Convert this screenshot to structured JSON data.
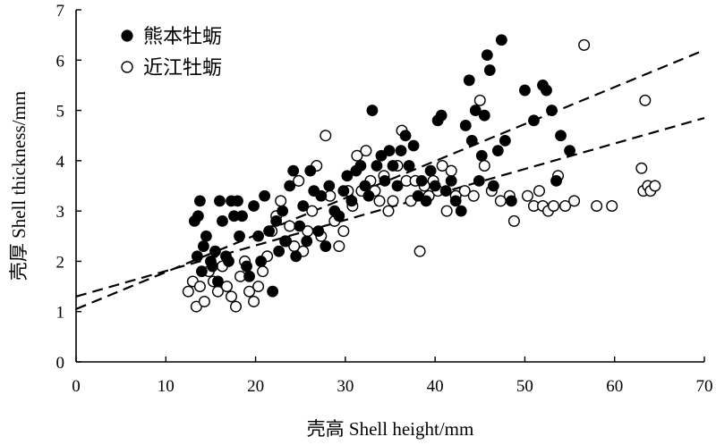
{
  "chart_data": {
    "type": "scatter",
    "xlabel": "壳高 Shell height/mm",
    "ylabel": "壳厚 Shell thickness/mm",
    "xlim": [
      0,
      70
    ],
    "ylim": [
      0,
      7
    ],
    "xticks": [
      0,
      10,
      20,
      30,
      40,
      50,
      60,
      70
    ],
    "yticks": [
      0,
      1,
      2,
      3,
      4,
      5,
      6,
      7
    ],
    "grid": false,
    "legend_position": "top-left",
    "series": [
      {
        "name": "熊本牡蛎",
        "marker": "filled-circle",
        "color": "#000000",
        "trend_line": [
          [
            0,
            1.05
          ],
          [
            70,
            6.2
          ]
        ],
        "points": [
          [
            13.2,
            2.8
          ],
          [
            13.6,
            2.9
          ],
          [
            13.8,
            3.2
          ],
          [
            13.5,
            2.1
          ],
          [
            14.0,
            1.8
          ],
          [
            14.2,
            2.3
          ],
          [
            14.5,
            2.5
          ],
          [
            15.0,
            2.0
          ],
          [
            15.2,
            1.9
          ],
          [
            15.5,
            2.2
          ],
          [
            15.8,
            1.6
          ],
          [
            16.0,
            3.2
          ],
          [
            16.3,
            2.8
          ],
          [
            16.7,
            2.1
          ],
          [
            17.0,
            2.0
          ],
          [
            17.3,
            3.2
          ],
          [
            17.6,
            2.9
          ],
          [
            18.0,
            3.2
          ],
          [
            18.2,
            2.5
          ],
          [
            18.5,
            2.9
          ],
          [
            19.0,
            1.9
          ],
          [
            19.3,
            1.7
          ],
          [
            19.8,
            3.1
          ],
          [
            20.3,
            2.5
          ],
          [
            20.6,
            2.0
          ],
          [
            21.0,
            3.3
          ],
          [
            21.5,
            2.6
          ],
          [
            21.9,
            1.4
          ],
          [
            22.3,
            2.8
          ],
          [
            22.6,
            2.2
          ],
          [
            23.0,
            3.0
          ],
          [
            23.4,
            2.4
          ],
          [
            23.8,
            3.5
          ],
          [
            24.2,
            3.8
          ],
          [
            24.5,
            2.1
          ],
          [
            24.9,
            2.7
          ],
          [
            25.3,
            3.1
          ],
          [
            25.7,
            2.4
          ],
          [
            26.1,
            3.8
          ],
          [
            26.5,
            3.4
          ],
          [
            27.0,
            2.6
          ],
          [
            27.3,
            3.3
          ],
          [
            27.8,
            2.3
          ],
          [
            28.2,
            3.5
          ],
          [
            28.8,
            3.0
          ],
          [
            29.3,
            2.9
          ],
          [
            29.8,
            3.4
          ],
          [
            30.2,
            3.7
          ],
          [
            30.7,
            3.2
          ],
          [
            31.2,
            3.8
          ],
          [
            31.7,
            3.9
          ],
          [
            32.2,
            3.5
          ],
          [
            32.6,
            3.3
          ],
          [
            33.0,
            5.0
          ],
          [
            33.5,
            3.9
          ],
          [
            34.0,
            4.1
          ],
          [
            34.4,
            3.6
          ],
          [
            34.9,
            4.2
          ],
          [
            35.3,
            3.9
          ],
          [
            35.8,
            3.5
          ],
          [
            36.2,
            4.2
          ],
          [
            36.7,
            4.5
          ],
          [
            37.1,
            3.9
          ],
          [
            37.6,
            4.3
          ],
          [
            38.1,
            3.3
          ],
          [
            38.5,
            3.6
          ],
          [
            39.0,
            3.2
          ],
          [
            39.5,
            3.8
          ],
          [
            40.0,
            3.5
          ],
          [
            40.3,
            4.8
          ],
          [
            40.7,
            4.9
          ],
          [
            41.2,
            3.4
          ],
          [
            41.8,
            3.6
          ],
          [
            42.3,
            3.2
          ],
          [
            42.9,
            3.0
          ],
          [
            43.4,
            4.7
          ],
          [
            43.8,
            5.6
          ],
          [
            44.1,
            4.4
          ],
          [
            44.5,
            5.0
          ],
          [
            44.9,
            3.6
          ],
          [
            45.2,
            4.1
          ],
          [
            45.5,
            4.9
          ],
          [
            45.8,
            6.1
          ],
          [
            46.1,
            5.8
          ],
          [
            46.5,
            3.5
          ],
          [
            47.0,
            4.2
          ],
          [
            47.4,
            6.4
          ],
          [
            47.8,
            4.4
          ],
          [
            48.5,
            3.2
          ],
          [
            50.0,
            5.4
          ],
          [
            51.0,
            4.8
          ],
          [
            52.0,
            5.5
          ],
          [
            52.4,
            5.4
          ],
          [
            53.0,
            5.0
          ],
          [
            53.5,
            3.6
          ],
          [
            54.0,
            4.5
          ],
          [
            55.0,
            4.2
          ]
        ]
      },
      {
        "name": "近江牡蛎",
        "marker": "open-circle",
        "color": "#000000",
        "trend_line": [
          [
            0,
            1.3
          ],
          [
            70,
            4.85
          ]
        ],
        "points": [
          [
            12.5,
            1.4
          ],
          [
            13.0,
            1.6
          ],
          [
            13.4,
            1.1
          ],
          [
            13.8,
            1.5
          ],
          [
            14.3,
            1.2
          ],
          [
            14.8,
            1.8
          ],
          [
            15.3,
            1.6
          ],
          [
            15.8,
            1.4
          ],
          [
            16.3,
            1.9
          ],
          [
            16.8,
            1.5
          ],
          [
            17.3,
            1.3
          ],
          [
            17.8,
            1.1
          ],
          [
            18.3,
            1.7
          ],
          [
            18.8,
            2.0
          ],
          [
            19.3,
            1.4
          ],
          [
            19.8,
            1.2
          ],
          [
            20.3,
            1.5
          ],
          [
            20.8,
            1.8
          ],
          [
            21.3,
            2.1
          ],
          [
            21.8,
            2.6
          ],
          [
            22.3,
            2.9
          ],
          [
            22.8,
            3.2
          ],
          [
            23.3,
            2.4
          ],
          [
            23.8,
            2.7
          ],
          [
            24.3,
            2.3
          ],
          [
            24.8,
            3.6
          ],
          [
            25.3,
            2.2
          ],
          [
            25.8,
            2.6
          ],
          [
            26.3,
            3.0
          ],
          [
            26.8,
            3.9
          ],
          [
            27.3,
            2.5
          ],
          [
            27.8,
            4.5
          ],
          [
            28.3,
            3.3
          ],
          [
            28.8,
            2.8
          ],
          [
            29.3,
            2.3
          ],
          [
            29.8,
            2.6
          ],
          [
            30.3,
            3.4
          ],
          [
            30.8,
            3.1
          ],
          [
            31.3,
            4.1
          ],
          [
            31.8,
            3.4
          ],
          [
            32.3,
            4.2
          ],
          [
            32.8,
            3.6
          ],
          [
            33.3,
            3.4
          ],
          [
            33.8,
            3.2
          ],
          [
            34.3,
            3.7
          ],
          [
            34.8,
            3.0
          ],
          [
            35.3,
            3.2
          ],
          [
            35.8,
            3.9
          ],
          [
            36.3,
            4.6
          ],
          [
            36.8,
            3.6
          ],
          [
            37.3,
            3.2
          ],
          [
            37.8,
            3.6
          ],
          [
            38.3,
            2.2
          ],
          [
            38.8,
            3.5
          ],
          [
            39.3,
            3.3
          ],
          [
            39.8,
            3.6
          ],
          [
            40.3,
            3.4
          ],
          [
            40.8,
            3.9
          ],
          [
            41.3,
            3.0
          ],
          [
            41.8,
            3.8
          ],
          [
            42.3,
            3.3
          ],
          [
            43.3,
            3.4
          ],
          [
            44.3,
            3.3
          ],
          [
            45.0,
            5.2
          ],
          [
            45.5,
            3.9
          ],
          [
            46.3,
            3.4
          ],
          [
            47.3,
            3.2
          ],
          [
            48.3,
            3.3
          ],
          [
            48.8,
            2.8
          ],
          [
            50.3,
            3.3
          ],
          [
            51.0,
            3.1
          ],
          [
            51.6,
            3.4
          ],
          [
            52.0,
            3.1
          ],
          [
            52.6,
            3.0
          ],
          [
            53.2,
            3.1
          ],
          [
            53.7,
            3.7
          ],
          [
            54.5,
            3.1
          ],
          [
            55.5,
            3.2
          ],
          [
            56.6,
            6.3
          ],
          [
            58.0,
            3.1
          ],
          [
            59.7,
            3.1
          ],
          [
            63.2,
            3.4
          ],
          [
            63.4,
            5.2
          ],
          [
            63.7,
            3.5
          ],
          [
            64.0,
            3.4
          ],
          [
            64.5,
            3.5
          ],
          [
            63.0,
            3.85
          ]
        ]
      }
    ]
  }
}
